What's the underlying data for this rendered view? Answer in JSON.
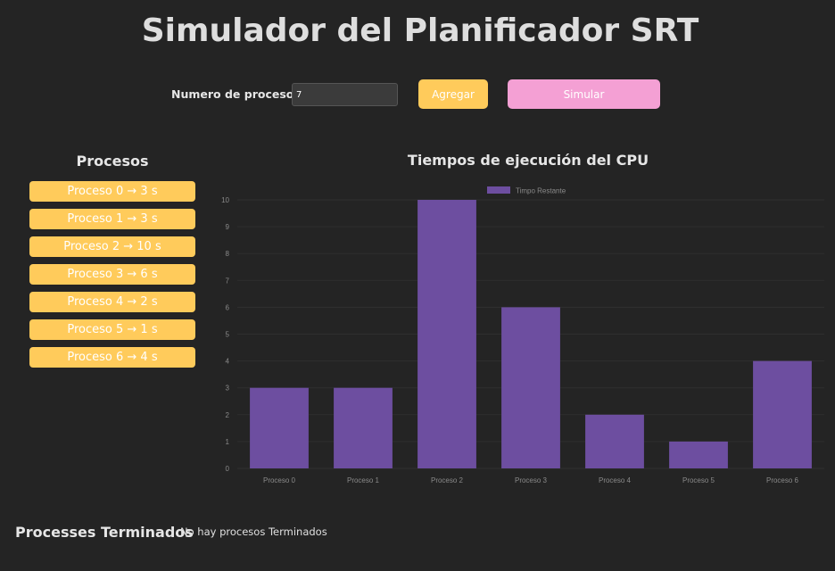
{
  "header": {
    "title": "Simulador del Planificador SRT"
  },
  "controls": {
    "label": "Numero de procesos",
    "input_value": "7",
    "add_button": "Agregar",
    "simulate_button": "Simular"
  },
  "processes": {
    "title": "Procesos",
    "items": [
      "Proceso 0 → 3 s",
      "Proceso 1 → 3 s",
      "Proceso 2 → 10 s",
      "Proceso 3 → 6 s",
      "Proceso 4 → 2 s",
      "Proceso 5 → 1 s",
      "Proceso 6 → 4 s"
    ]
  },
  "chart": {
    "title": "Tiempos de ejecución del CPU"
  },
  "chart_data": {
    "type": "bar",
    "categories": [
      "Proceso 0",
      "Proceso 1",
      "Proceso 2",
      "Proceso 3",
      "Proceso 4",
      "Proceso 5",
      "Proceso 6"
    ],
    "series": [
      {
        "name": "Timpo Restante",
        "values": [
          3,
          3,
          10,
          6,
          2,
          1,
          4
        ],
        "color": "#6d4ea0"
      }
    ],
    "ylim": [
      0,
      10
    ],
    "yticks": [
      0,
      1,
      2,
      3,
      4,
      5,
      6,
      7,
      8,
      9,
      10
    ],
    "grid": true,
    "legend": "top-center"
  },
  "finished": {
    "title": "Processes Terminados",
    "empty_text": "No hay procesos Terminados"
  },
  "colors": {
    "background": "#242424",
    "accent_yellow": "#ffcb5b",
    "accent_pink": "#f4a0d4",
    "bar_purple": "#6d4ea0"
  }
}
